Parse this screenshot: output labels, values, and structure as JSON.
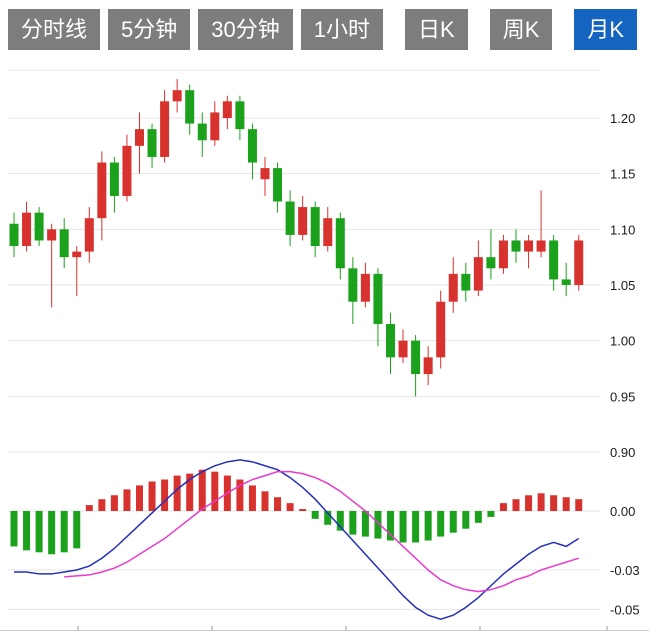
{
  "tabs": [
    {
      "id": "time-line",
      "label": "分时线",
      "active": false,
      "gap": false
    },
    {
      "id": "5min",
      "label": "5分钟",
      "active": false,
      "gap": false
    },
    {
      "id": "30min",
      "label": "30分钟",
      "active": false,
      "gap": false
    },
    {
      "id": "1hour",
      "label": "1小时",
      "active": false,
      "gap": false
    },
    {
      "id": "day-k",
      "label": "日K",
      "active": false,
      "gap": true
    },
    {
      "id": "week-k",
      "label": "周K",
      "active": false,
      "gap": true
    },
    {
      "id": "month-k",
      "label": "月K",
      "active": true,
      "gap": true
    }
  ],
  "colors": {
    "up": "#d8322e",
    "down": "#1ca11c",
    "dif_line": "#2430b8",
    "dea_line": "#e93ad0",
    "tab_bg": "#7d7d7d",
    "tab_active_bg": "#1565c0",
    "tab_text": "#ffffff",
    "grid": "#e4e4e4",
    "axis_text": "#1a1a1a",
    "axis_line": "#c9c9c9"
  },
  "price_axis": {
    "ticks": [
      {
        "label": "1.20",
        "value": 1.2
      },
      {
        "label": "1.15",
        "value": 1.15
      },
      {
        "label": "1.10",
        "value": 1.1
      },
      {
        "label": "1.05",
        "value": 1.05
      },
      {
        "label": "1.00",
        "value": 1.0
      },
      {
        "label": "0.95",
        "value": 0.95
      },
      {
        "label": "0.90",
        "value": 0.9
      }
    ]
  },
  "macd_axis": {
    "ticks": [
      {
        "label": "0.00",
        "value": 0
      },
      {
        "label": "-0.03",
        "value": -0.03
      },
      {
        "label": "-0.05",
        "value": -0.05
      }
    ]
  },
  "chart_data": {
    "type": "candlestick",
    "title": "",
    "xlabel": "",
    "ylabel": "",
    "legend": false,
    "grid": true,
    "panels": [
      {
        "name": "price",
        "type": "candlestick",
        "ylim": [
          0.9,
          1.245
        ],
        "yticks": [
          1.2,
          1.15,
          1.1,
          1.05,
          1.0,
          0.95,
          0.9
        ],
        "up_color_convention": "red = close above open (CN convention), green = close below open",
        "ohlc": [
          [
            1.105,
            1.115,
            1.075,
            1.085
          ],
          [
            1.085,
            1.125,
            1.08,
            1.115
          ],
          [
            1.115,
            1.12,
            1.085,
            1.09
          ],
          [
            1.09,
            1.105,
            1.03,
            1.1
          ],
          [
            1.1,
            1.11,
            1.065,
            1.075
          ],
          [
            1.075,
            1.085,
            1.04,
            1.08
          ],
          [
            1.08,
            1.12,
            1.07,
            1.11
          ],
          [
            1.11,
            1.17,
            1.09,
            1.16
          ],
          [
            1.16,
            1.165,
            1.115,
            1.13
          ],
          [
            1.13,
            1.185,
            1.125,
            1.175
          ],
          [
            1.175,
            1.205,
            1.15,
            1.19
          ],
          [
            1.19,
            1.195,
            1.155,
            1.165
          ],
          [
            1.165,
            1.225,
            1.16,
            1.215
          ],
          [
            1.215,
            1.235,
            1.205,
            1.225
          ],
          [
            1.225,
            1.23,
            1.185,
            1.195
          ],
          [
            1.195,
            1.205,
            1.165,
            1.18
          ],
          [
            1.18,
            1.215,
            1.175,
            1.205
          ],
          [
            1.2,
            1.22,
            1.19,
            1.215
          ],
          [
            1.215,
            1.22,
            1.18,
            1.19
          ],
          [
            1.19,
            1.195,
            1.145,
            1.16
          ],
          [
            1.145,
            1.165,
            1.13,
            1.155
          ],
          [
            1.155,
            1.16,
            1.115,
            1.125
          ],
          [
            1.125,
            1.135,
            1.085,
            1.095
          ],
          [
            1.095,
            1.13,
            1.09,
            1.12
          ],
          [
            1.12,
            1.125,
            1.075,
            1.085
          ],
          [
            1.085,
            1.12,
            1.08,
            1.11
          ],
          [
            1.11,
            1.115,
            1.055,
            1.065
          ],
          [
            1.065,
            1.075,
            1.015,
            1.035
          ],
          [
            1.035,
            1.07,
            1.03,
            1.06
          ],
          [
            1.06,
            1.065,
            0.995,
            1.015
          ],
          [
            1.015,
            1.025,
            0.97,
            0.985
          ],
          [
            0.985,
            1.01,
            0.98,
            1.0
          ],
          [
            1.0,
            1.005,
            0.95,
            0.97
          ],
          [
            0.97,
            0.995,
            0.96,
            0.985
          ],
          [
            0.985,
            1.045,
            0.975,
            1.035
          ],
          [
            1.035,
            1.075,
            1.025,
            1.06
          ],
          [
            1.06,
            1.07,
            1.035,
            1.045
          ],
          [
            1.045,
            1.09,
            1.04,
            1.075
          ],
          [
            1.075,
            1.1,
            1.055,
            1.065
          ],
          [
            1.065,
            1.095,
            1.06,
            1.09
          ],
          [
            1.09,
            1.1,
            1.07,
            1.08
          ],
          [
            1.08,
            1.095,
            1.065,
            1.09
          ],
          [
            1.08,
            1.135,
            1.075,
            1.09
          ],
          [
            1.09,
            1.095,
            1.045,
            1.055
          ],
          [
            1.055,
            1.07,
            1.04,
            1.05
          ],
          [
            1.05,
            1.095,
            1.045,
            1.09
          ]
        ]
      },
      {
        "name": "macd",
        "type": "bar+line",
        "ylim": [
          -0.06,
          0.03
        ],
        "yticks": [
          0.0,
          -0.03,
          -0.05
        ],
        "histogram": [
          -0.018,
          -0.02,
          -0.021,
          -0.022,
          -0.021,
          -0.019,
          0.003,
          0.006,
          0.008,
          0.011,
          0.013,
          0.015,
          0.016,
          0.018,
          0.019,
          0.021,
          0.02,
          0.018,
          0.016,
          0.013,
          0.01,
          0.007,
          0.004,
          0.001,
          -0.004,
          -0.007,
          -0.01,
          -0.012,
          -0.013,
          -0.014,
          -0.015,
          -0.016,
          -0.016,
          -0.015,
          -0.013,
          -0.011,
          -0.009,
          -0.006,
          -0.003,
          0.004,
          0.006,
          0.008,
          0.009,
          0.008,
          0.007,
          0.006
        ],
        "series": [
          {
            "name": "DIF",
            "values": [
              -0.031,
              -0.031,
              -0.032,
              -0.032,
              -0.031,
              -0.03,
              -0.028,
              -0.024,
              -0.019,
              -0.013,
              -0.007,
              -0.001,
              0.005,
              0.011,
              0.016,
              0.02,
              0.023,
              0.025,
              0.026,
              0.025,
              0.023,
              0.021,
              0.017,
              0.012,
              0.006,
              -0.001,
              -0.008,
              -0.015,
              -0.022,
              -0.029,
              -0.036,
              -0.043,
              -0.049,
              -0.053,
              -0.055,
              -0.053,
              -0.049,
              -0.044,
              -0.038,
              -0.032,
              -0.027,
              -0.022,
              -0.018,
              -0.016,
              -0.018,
              -0.014
            ]
          },
          {
            "name": "DEA",
            "values": [
              null,
              null,
              null,
              null,
              -0.0335,
              -0.033,
              -0.0325,
              -0.031,
              -0.029,
              -0.026,
              -0.022,
              -0.018,
              -0.014,
              -0.009,
              -0.004,
              0.001,
              0.005,
              0.009,
              0.013,
              0.016,
              0.018,
              0.02,
              0.02,
              0.019,
              0.017,
              0.014,
              0.01,
              0.005,
              0.0,
              -0.006,
              -0.012,
              -0.018,
              -0.024,
              -0.03,
              -0.035,
              -0.038,
              -0.04,
              -0.041,
              -0.04,
              -0.038,
              -0.035,
              -0.033,
              -0.03,
              -0.028,
              -0.026,
              -0.024
            ]
          }
        ]
      }
    ]
  }
}
